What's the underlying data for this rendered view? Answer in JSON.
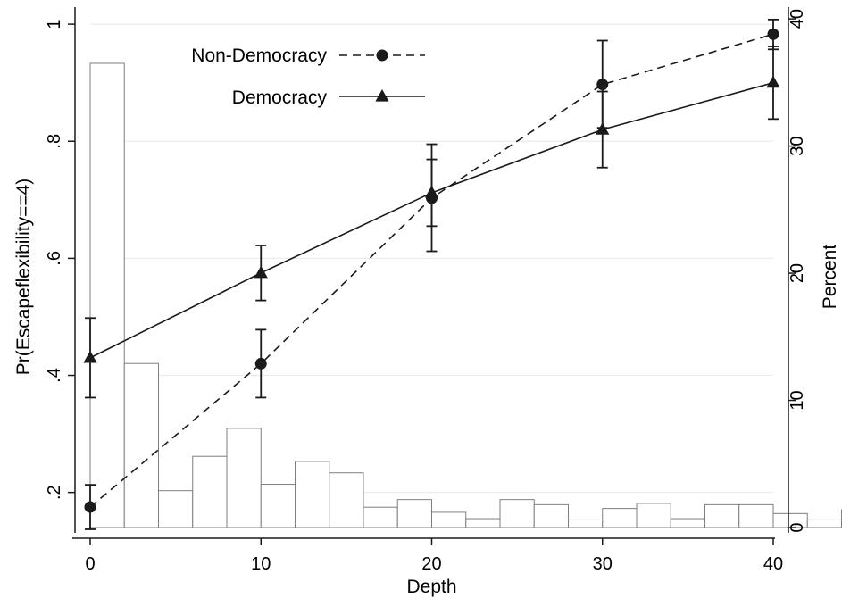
{
  "chart_data": {
    "type": "line",
    "title": "",
    "xlabel": "Depth",
    "ylabel_left": "Pr(Escapeflexibility==4)",
    "ylabel_right": "Percent",
    "xlim": [
      0,
      40
    ],
    "ylim_left": [
      0.14,
      1.02
    ],
    "ylim_right": [
      0,
      40.5
    ],
    "x_ticks": [
      0,
      10,
      20,
      30,
      40
    ],
    "x_tick_labels": [
      "0",
      "10",
      "20",
      "30",
      "40"
    ],
    "y_left_ticks": [
      0.2,
      0.4,
      0.6,
      0.8,
      1.0
    ],
    "y_left_tick_labels": [
      ".2",
      ".4",
      ".6",
      ".8",
      "1"
    ],
    "y_right_ticks": [
      0,
      10,
      20,
      30,
      40
    ],
    "y_right_tick_labels": [
      "0",
      "10",
      "20",
      "30",
      "40"
    ],
    "grid": true,
    "legend": {
      "placement": "top-left",
      "entries": [
        "Non-Democracy",
        "Democracy"
      ]
    },
    "series": [
      {
        "name": "Non-Democracy",
        "style": "dashed",
        "marker": "circle",
        "x": [
          0,
          10,
          20,
          30,
          40
        ],
        "y": [
          0.175,
          0.42,
          0.703,
          0.897,
          0.983
        ],
        "ci_low": [
          0.137,
          0.362,
          0.612,
          0.823,
          0.957
        ],
        "ci_high": [
          0.213,
          0.478,
          0.795,
          0.972,
          1.008
        ]
      },
      {
        "name": "Democracy",
        "style": "solid",
        "marker": "triangle",
        "x": [
          0,
          10,
          20,
          30,
          40
        ],
        "y": [
          0.43,
          0.575,
          0.712,
          0.82,
          0.9
        ],
        "ci_low": [
          0.362,
          0.528,
          0.655,
          0.755,
          0.838
        ],
        "ci_high": [
          0.498,
          0.622,
          0.769,
          0.885,
          0.962
        ]
      }
    ],
    "histogram": {
      "axis": "right",
      "bin_width": 2,
      "bin_start": 0,
      "percents": [
        36.5,
        12.9,
        2.9,
        5.6,
        7.8,
        3.4,
        5.2,
        4.3,
        1.6,
        2.2,
        1.2,
        0.7,
        2.2,
        1.8,
        0.6,
        1.5,
        1.9,
        0.7,
        1.8,
        1.8,
        1.1,
        0.6,
        1.4,
        0.6
      ]
    }
  },
  "colors": {
    "line": "#1a1a1a",
    "grid": "#ececec",
    "bar_stroke": "#7f7f7f",
    "bar_fill": "#ffffff"
  }
}
